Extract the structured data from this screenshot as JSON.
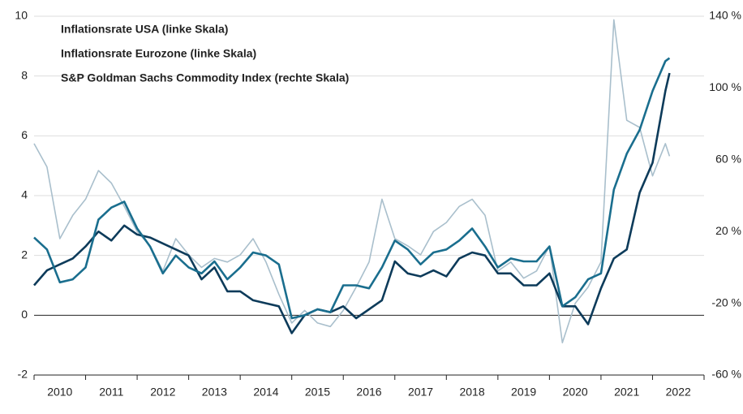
{
  "chart_data": {
    "type": "line",
    "x": [
      2010,
      2010.25,
      2010.5,
      2010.75,
      2011,
      2011.25,
      2011.5,
      2011.75,
      2012,
      2012.25,
      2012.5,
      2012.75,
      2013,
      2013.25,
      2013.5,
      2013.75,
      2014,
      2014.25,
      2014.5,
      2014.75,
      2015,
      2015.25,
      2015.5,
      2015.75,
      2016,
      2016.25,
      2016.5,
      2016.75,
      2017,
      2017.25,
      2017.5,
      2017.75,
      2018,
      2018.25,
      2018.5,
      2018.75,
      2019,
      2019.25,
      2019.5,
      2019.75,
      2020,
      2020.25,
      2020.5,
      2020.75,
      2021,
      2021.25,
      2021.5,
      2021.75,
      2022,
      2022.25,
      2022.33
    ],
    "series": [
      {
        "name": "S&P Goldman Sachs Commodity Index (rechte Skala)",
        "color": "#a9bfcc",
        "axis": "y2",
        "values": [
          69,
          56,
          16,
          29,
          38,
          54,
          47,
          34,
          20,
          12,
          -2,
          16,
          7,
          0,
          5,
          3,
          7,
          16,
          3,
          -15,
          -31,
          -24,
          -31,
          -33,
          -24,
          -11,
          3,
          38,
          16,
          12,
          7,
          20,
          25,
          34,
          38,
          29,
          -2,
          3,
          -6,
          -2,
          12,
          -42,
          -20,
          -11,
          3,
          138,
          82,
          78,
          51,
          69,
          62
        ]
      },
      {
        "name": "Inflationsrate Eurozone (linke Skala)",
        "color": "#0d3b5a",
        "values": [
          1.0,
          1.5,
          1.7,
          1.9,
          2.3,
          2.8,
          2.5,
          3.0,
          2.7,
          2.6,
          2.4,
          2.2,
          2.0,
          1.2,
          1.6,
          0.8,
          0.8,
          0.5,
          0.4,
          0.3,
          -0.6,
          0.0,
          0.2,
          0.1,
          0.3,
          -0.1,
          0.2,
          0.5,
          1.8,
          1.4,
          1.3,
          1.5,
          1.3,
          1.9,
          2.1,
          2.0,
          1.4,
          1.4,
          1.0,
          1.0,
          1.4,
          0.3,
          0.3,
          -0.3,
          0.9,
          1.9,
          2.2,
          4.1,
          5.1,
          7.5,
          8.1
        ]
      },
      {
        "name": "Inflationsrate USA (linke Skala)",
        "color": "#1a6e8e",
        "values": [
          2.6,
          2.2,
          1.1,
          1.2,
          1.6,
          3.2,
          3.6,
          3.8,
          2.9,
          2.3,
          1.4,
          2.0,
          1.6,
          1.4,
          1.8,
          1.2,
          1.6,
          2.1,
          2.0,
          1.7,
          -0.1,
          0.0,
          0.2,
          0.1,
          1.0,
          1.0,
          0.9,
          1.6,
          2.5,
          2.2,
          1.7,
          2.1,
          2.2,
          2.5,
          2.9,
          2.3,
          1.6,
          1.9,
          1.8,
          1.8,
          2.3,
          0.3,
          0.6,
          1.2,
          1.4,
          4.2,
          5.4,
          6.2,
          7.5,
          8.5,
          8.6
        ]
      }
    ],
    "xlim": [
      2010,
      2023
    ],
    "xticks": [
      2010,
      2011,
      2012,
      2013,
      2014,
      2015,
      2016,
      2017,
      2018,
      2019,
      2020,
      2021,
      2022
    ],
    "ylim": [
      -2,
      10
    ],
    "yticks": [
      -2,
      0,
      2,
      4,
      6,
      8,
      10
    ],
    "y2lim": [
      -60,
      140
    ],
    "y2ticks": [
      {
        "value": -60,
        "label": "-60 %"
      },
      {
        "value": -20,
        "label": "-20 %"
      },
      {
        "value": 20,
        "label": "20 %"
      },
      {
        "value": 60,
        "label": "60 %"
      },
      {
        "value": 100,
        "label": "100 %"
      },
      {
        "value": 140,
        "label": "140 %"
      }
    ],
    "grid": true
  }
}
